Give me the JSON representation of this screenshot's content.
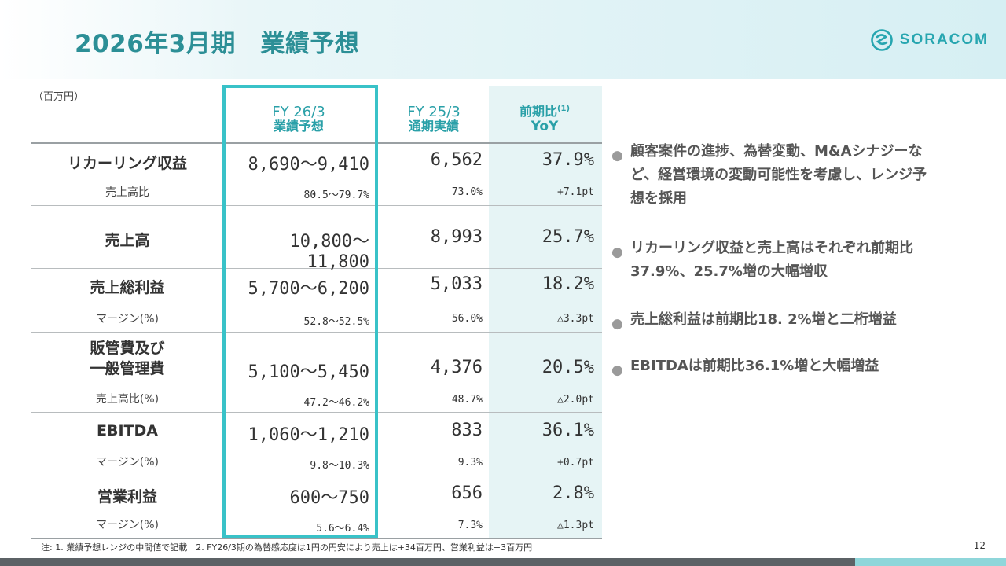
{
  "title": "2026年3月期　業績予想",
  "logo": {
    "text": "SORACOM",
    "icon": "soracom-logo-icon",
    "color": "#27a6b0"
  },
  "unit": "（百万円）",
  "colors": {
    "accent": "#39c2c8",
    "title": "#2c8f96",
    "yoy_bg": "#e6f4f5"
  },
  "columns": {
    "fy26": {
      "line1": "FY 26/3",
      "line2": "業績予想"
    },
    "fy25": {
      "line1": "FY 25/3",
      "line2": "通期実績"
    },
    "yoy": {
      "line1": "前期比",
      "sup": "(1)",
      "line2": "YoY"
    }
  },
  "rows": {
    "recurring": {
      "label": "リカーリング収益",
      "fy26": "8,690～9,410",
      "fy25": "6,562",
      "yoy": "37.9%"
    },
    "recurring_ratio": {
      "label": "売上高比",
      "fy26": "80.5～79.7%",
      "fy25": "73.0%",
      "yoy": "+7.1pt"
    },
    "revenue": {
      "label": "売上高",
      "fy26": "10,800～11,800",
      "fy25": "8,993",
      "yoy": "25.7%"
    },
    "gross_profit": {
      "label": "売上総利益",
      "fy26": "5,700～6,200",
      "fy25": "5,033",
      "yoy": "18.2%"
    },
    "gross_margin": {
      "label": "マージン(%)",
      "fy26": "52.8～52.5%",
      "fy25": "56.0%",
      "yoy": "△3.3pt"
    },
    "sga": {
      "label1": "販管費及び",
      "label2": "一般管理費",
      "fy26": "5,100～5,450",
      "fy25": "4,376",
      "yoy": "20.5%"
    },
    "sga_ratio": {
      "label": "売上高比(%)",
      "fy26": "47.2～46.2%",
      "fy25": "48.7%",
      "yoy": "△2.0pt"
    },
    "ebitda": {
      "label": "EBITDA",
      "fy26": "1,060～1,210",
      "fy25": "833",
      "yoy": "36.1%"
    },
    "ebitda_margin": {
      "label": "マージン(%)",
      "fy26": "9.8～10.3%",
      "fy25": "9.3%",
      "yoy": "+0.7pt"
    },
    "op_income": {
      "label": "営業利益",
      "fy26": "600～750",
      "fy25": "656",
      "yoy": "2.8%"
    },
    "op_margin": {
      "label": "マージン(%)",
      "fy26": "5.6～6.4%",
      "fy25": "7.3%",
      "yoy": "△1.3pt"
    }
  },
  "bullets": [
    {
      "line1": "顧客案件の進捗、為替変動、M&Aシナジーな",
      "line2": "ど、経営環境の変動可能性を考慮し、レンジ予",
      "line3": "想を採用"
    },
    {
      "line1": "リカーリング収益と売上高はそれぞれ前期比",
      "line2": "37.9%、25.7%増の大幅増収"
    },
    {
      "line1": "売上総利益は前期比18. 2%増と二桁増益"
    },
    {
      "line1": "EBITDAは前期比36.1%増と大幅増益"
    }
  ],
  "footnote": "注: 1. 業績予想レンジの中間値で記載　2. FY26/3期の為替感応度は1円の円安により売上は+34百万円、営業利益は+3百万円",
  "page_number": "12"
}
